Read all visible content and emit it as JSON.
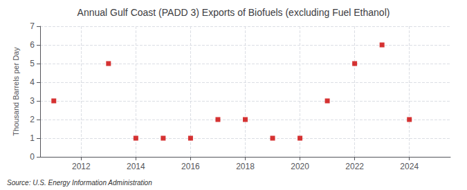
{
  "chart_data": {
    "type": "scatter",
    "title": "Annual Gulf Coast (PADD 3) Exports of Biofuels (excluding Fuel Ethanol)",
    "ylabel": "Thousand Barrels per Day",
    "source": "Source: U.S. Energy Information Administration",
    "x": [
      2011,
      2013,
      2014,
      2015,
      2016,
      2017,
      2018,
      2019,
      2020,
      2021,
      2022,
      2023,
      2024
    ],
    "values": [
      3,
      5,
      1,
      1,
      1,
      2,
      2,
      1,
      1,
      3,
      5,
      6,
      2
    ],
    "color": "#CC0000",
    "marker": "square",
    "xlim": [
      2010.5,
      2025.5
    ],
    "xticks": [
      2012,
      2014,
      2016,
      2018,
      2020,
      2022,
      2024
    ],
    "ylim": [
      0,
      7
    ],
    "yticks": [
      0,
      1,
      2,
      3,
      4,
      5,
      6,
      7
    ],
    "grid": true
  }
}
